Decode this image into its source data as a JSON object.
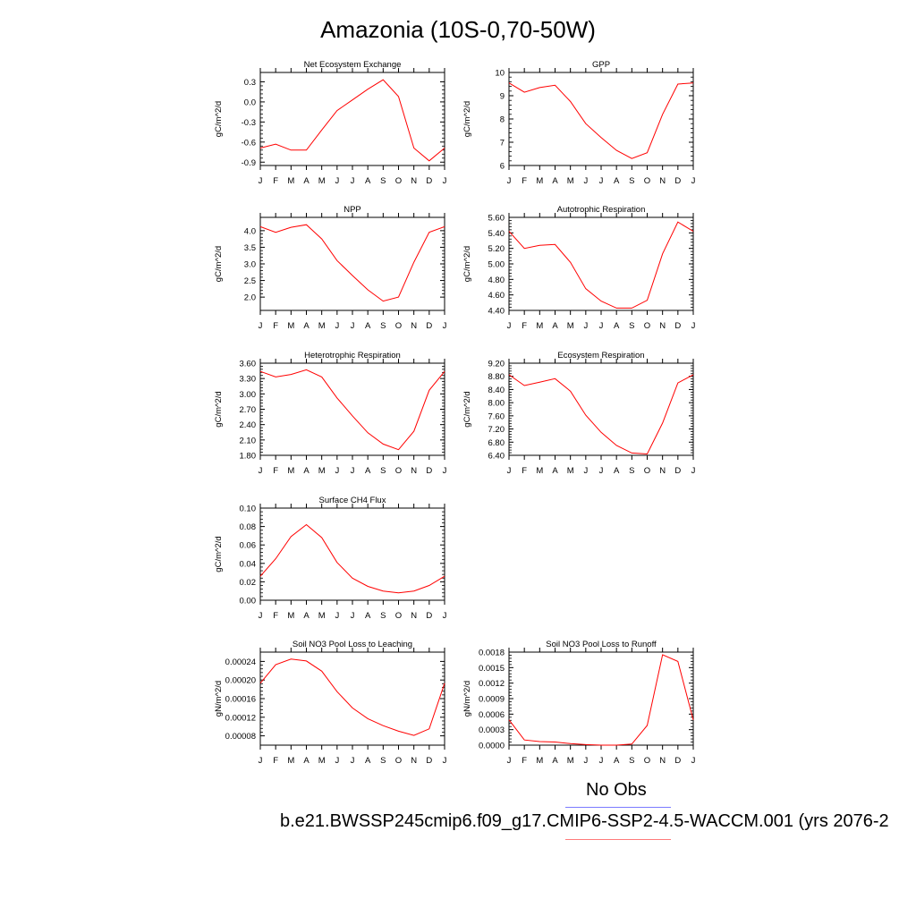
{
  "title": "Amazonia (10S-0,70-50W)",
  "legend": {
    "obs_label": "No Obs",
    "case_label": "b.e21.BWSSP245cmip6.f09_g17.CMIP6-SSP2-4.5-WACCM.001 (yrs 2076-2",
    "obs_color": "#7b7bff",
    "case_color": "#ff7b7b"
  },
  "series_color": "#ff0000",
  "months": [
    "J",
    "F",
    "M",
    "A",
    "M",
    "J",
    "J",
    "A",
    "S",
    "O",
    "N",
    "D",
    "J"
  ],
  "chart_data": [
    {
      "type": "line",
      "title": "Net Ecosystem Exchange",
      "ylabel": "gC/m^2/d",
      "ylim": [
        -0.95,
        0.44
      ],
      "yticks": [
        -0.9,
        -0.6,
        -0.3,
        0.0,
        0.3
      ],
      "ytick_labels": [
        "-0.9",
        "-0.6",
        "-0.3",
        "0.0",
        "0.3"
      ],
      "values": [
        -0.69,
        -0.63,
        -0.72,
        -0.72,
        -0.42,
        -0.13,
        0.03,
        0.19,
        0.33,
        0.08,
        -0.69,
        -0.88,
        -0.69
      ]
    },
    {
      "type": "line",
      "title": "GPP",
      "ylabel": "gC/m^2/d",
      "ylim": [
        6,
        10
      ],
      "yticks": [
        6,
        7,
        8,
        9,
        10
      ],
      "ytick_labels": [
        "6",
        "7",
        "8",
        "9",
        "10"
      ],
      "values": [
        9.55,
        9.15,
        9.35,
        9.45,
        8.75,
        7.8,
        7.2,
        6.65,
        6.3,
        6.55,
        8.2,
        9.5,
        9.55
      ]
    },
    {
      "type": "line",
      "title": "NPP",
      "ylabel": "gC/m^2/d",
      "ylim": [
        1.6,
        4.4
      ],
      "yticks": [
        2.0,
        2.5,
        3.0,
        3.5,
        4.0
      ],
      "ytick_labels": [
        "2.0",
        "2.5",
        "3.0",
        "3.5",
        "4.0"
      ],
      "values": [
        4.12,
        3.95,
        4.1,
        4.18,
        3.75,
        3.1,
        2.65,
        2.22,
        1.88,
        2.0,
        3.05,
        3.95,
        4.12
      ]
    },
    {
      "type": "line",
      "title": "Autotrophic Respiration",
      "ylabel": "gC/m^2/d",
      "ylim": [
        4.4,
        5.6
      ],
      "yticks": [
        4.4,
        4.6,
        4.8,
        5.0,
        5.2,
        5.4,
        5.6
      ],
      "ytick_labels": [
        "4.40",
        "4.60",
        "4.80",
        "5.00",
        "5.20",
        "5.40",
        "5.60"
      ],
      "values": [
        5.42,
        5.2,
        5.24,
        5.25,
        5.02,
        4.68,
        4.52,
        4.43,
        4.43,
        4.53,
        5.13,
        5.54,
        5.42
      ]
    },
    {
      "type": "line",
      "title": "Heterotrophic Respiration",
      "ylabel": "gC/m^2/d",
      "ylim": [
        1.8,
        3.6
      ],
      "yticks": [
        1.8,
        2.1,
        2.4,
        2.7,
        3.0,
        3.3,
        3.6
      ],
      "ytick_labels": [
        "1.80",
        "2.10",
        "2.40",
        "2.70",
        "3.00",
        "3.30",
        "3.60"
      ],
      "values": [
        3.44,
        3.33,
        3.38,
        3.47,
        3.33,
        2.92,
        2.57,
        2.24,
        2.02,
        1.91,
        2.27,
        3.07,
        3.44
      ]
    },
    {
      "type": "line",
      "title": "Ecosystem Respiration",
      "ylabel": "gC/m^2/d",
      "ylim": [
        6.4,
        9.2
      ],
      "yticks": [
        6.4,
        6.8,
        7.2,
        7.6,
        8.0,
        8.4,
        8.8,
        9.2
      ],
      "ytick_labels": [
        "6.40",
        "6.80",
        "7.20",
        "7.60",
        "8.00",
        "8.40",
        "8.80",
        "9.20"
      ],
      "values": [
        8.85,
        8.52,
        8.62,
        8.73,
        8.35,
        7.62,
        7.1,
        6.7,
        6.47,
        6.44,
        7.38,
        8.6,
        8.85
      ]
    },
    {
      "type": "line",
      "title": "Surface CH4 Flux",
      "ylabel": "gC/m^2/d",
      "ylim": [
        0.0,
        0.1
      ],
      "yticks": [
        0.0,
        0.02,
        0.04,
        0.06,
        0.08,
        0.1
      ],
      "ytick_labels": [
        "0.00",
        "0.02",
        "0.04",
        "0.06",
        "0.08",
        "0.10"
      ],
      "values": [
        0.026,
        0.045,
        0.069,
        0.082,
        0.068,
        0.041,
        0.024,
        0.015,
        0.01,
        0.008,
        0.01,
        0.016,
        0.026
      ]
    },
    {
      "type": "line",
      "title": "Soil NO3 Pool Loss to Leaching",
      "ylabel": "gN/m^2/d",
      "ylim": [
        6e-05,
        0.00026
      ],
      "yticks": [
        8e-05,
        0.00012,
        0.00016,
        0.0002,
        0.00024
      ],
      "ytick_labels": [
        "0.00008",
        "0.00012",
        "0.00016",
        "0.00020",
        "0.00024"
      ],
      "values": [
        0.000193,
        0.000233,
        0.000245,
        0.000241,
        0.000219,
        0.000175,
        0.00014,
        0.000117,
        0.000102,
        9e-05,
        8.1e-05,
        9.5e-05,
        0.000193
      ]
    },
    {
      "type": "line",
      "title": "Soil NO3 Pool Loss to Runoff",
      "ylabel": "gN/m^2/d",
      "ylim": [
        0.0,
        0.0018
      ],
      "yticks": [
        0.0,
        0.0003,
        0.0006,
        0.0009,
        0.0012,
        0.0015,
        0.0018
      ],
      "ytick_labels": [
        "0.0000",
        "0.0003",
        "0.0006",
        "0.0009",
        "0.0012",
        "0.0015",
        "0.0018"
      ],
      "values": [
        0.00049,
        0.0001,
        7e-05,
        6e-05,
        3e-05,
        1e-05,
        0.0,
        0.0,
        2e-05,
        0.00038,
        0.00175,
        0.00162,
        0.00049
      ]
    }
  ]
}
